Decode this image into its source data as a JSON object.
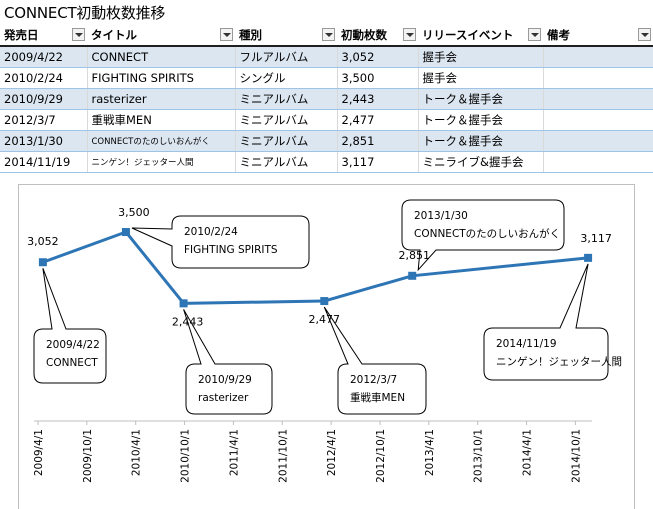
{
  "title": "CONNECT初動枚数推移",
  "table": {
    "headers": [
      "発売日",
      "タイトル",
      "種別",
      "初動枚数",
      "リリースイベント",
      "備考"
    ],
    "rows": [
      {
        "date": "2009/4/22",
        "title": "CONNECT",
        "type": "フルアルバム",
        "sales": "3,052",
        "event": "握手会",
        "note": ""
      },
      {
        "date": "2010/2/24",
        "title": "FIGHTING SPIRITS",
        "type": "シングル",
        "sales": "3,500",
        "event": "握手会",
        "note": ""
      },
      {
        "date": "2010/9/29",
        "title": "rasterizer",
        "type": "ミニアルバム",
        "sales": "2,443",
        "event": " トーク＆握手会",
        "note": ""
      },
      {
        "date": "2012/3/7",
        "title": "重戦車MEN",
        "type": "ミニアルバム",
        "sales": "2,477",
        "event": "トーク＆握手会",
        "note": ""
      },
      {
        "date": "2013/1/30",
        "title": "CONNECTのたのしいおんがく",
        "type": "ミニアルバム",
        "sales": "2,851",
        "event": "トーク＆握手会",
        "note": ""
      },
      {
        "date": "2014/11/19",
        "title": "ニンゲン！ジェッター人間",
        "type": "ミニアルバム",
        "sales": "3,117",
        "event": "ミニライブ&握手会",
        "note": ""
      }
    ]
  },
  "chart_data": {
    "type": "line",
    "series": [
      {
        "name": "初動枚数",
        "color": "#2e75b6"
      }
    ],
    "points": [
      {
        "date": "2009/4/22",
        "t": 2009.3,
        "value": 3052,
        "label": "3,052",
        "callout": [
          "2009/4/22",
          "CONNECT"
        ]
      },
      {
        "date": "2010/2/24",
        "t": 2010.15,
        "value": 3500,
        "label": "3,500",
        "callout": [
          "2010/2/24",
          "FIGHTING SPIRITS"
        ]
      },
      {
        "date": "2010/9/29",
        "t": 2010.74,
        "value": 2443,
        "label": "2,443",
        "callout": [
          "2010/9/29",
          "rasterizer"
        ]
      },
      {
        "date": "2012/3/7",
        "t": 2012.18,
        "value": 2477,
        "label": "2,477",
        "callout": [
          "2012/3/7",
          "重戦車MEN"
        ]
      },
      {
        "date": "2013/1/30",
        "t": 2013.08,
        "value": 2851,
        "label": "2,851",
        "callout": [
          "2013/1/30",
          "CONNECTのたのしいおんがく"
        ]
      },
      {
        "date": "2014/11/19",
        "t": 2014.88,
        "value": 3117,
        "label": "3,117",
        "callout": [
          "2014/11/19",
          "ニンゲン！ジェッター人間"
        ]
      }
    ],
    "x_ticks": [
      "2009/4/1",
      "2009/10/1",
      "2010/4/1",
      "2010/10/1",
      "2011/4/1",
      "2011/10/1",
      "2012/4/1",
      "2012/10/1",
      "2013/4/1",
      "2013/10/1",
      "2014/4/1",
      "2014/10/1"
    ],
    "x_tick_t": [
      2009.25,
      2009.75,
      2010.25,
      2010.75,
      2011.25,
      2011.75,
      2012.25,
      2012.75,
      2013.25,
      2013.75,
      2014.25,
      2014.75
    ],
    "xlim": [
      2009.25,
      2014.92
    ],
    "ylim": [
      1900,
      3800
    ],
    "grid": false,
    "legend": "none"
  }
}
